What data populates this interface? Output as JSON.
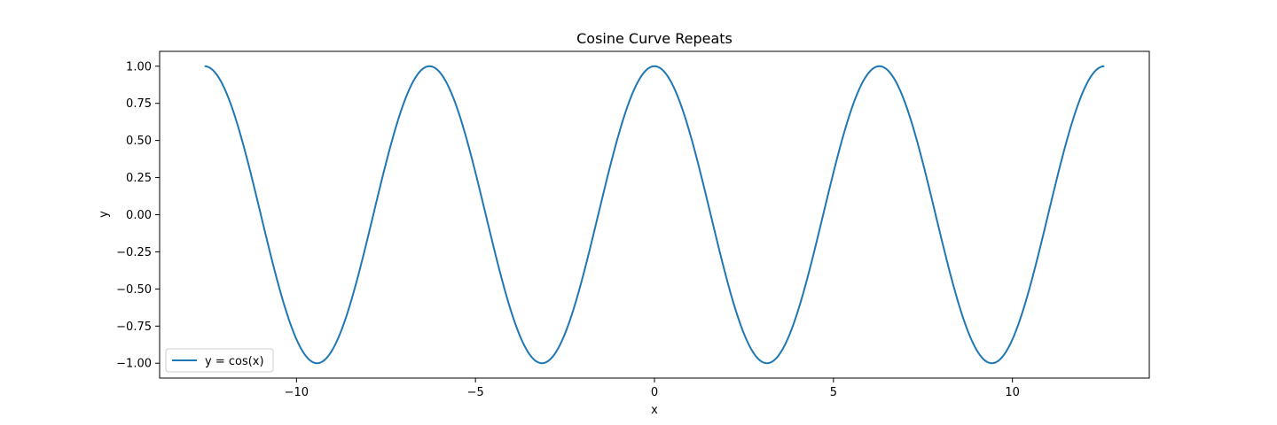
{
  "chart_data": {
    "type": "line",
    "title": "Cosine Curve Repeats",
    "xlabel": "x",
    "ylabel": "y",
    "xlim": [
      -13.823,
      13.823
    ],
    "ylim": [
      -1.1,
      1.1
    ],
    "xticks": [
      -10,
      -5,
      0,
      5,
      10
    ],
    "xtick_labels": [
      "−10",
      "−5",
      "0",
      "5",
      "10"
    ],
    "yticks": [
      -1.0,
      -0.75,
      -0.5,
      -0.25,
      0.0,
      0.25,
      0.5,
      0.75,
      1.0
    ],
    "ytick_labels": [
      "−1.00",
      "−0.75",
      "−0.50",
      "−0.25",
      "0.00",
      "0.25",
      "0.50",
      "0.75",
      "1.00"
    ],
    "grid": false,
    "legend_position": "lower-left",
    "series": [
      {
        "name": "y = cos(x)",
        "color": "#1f77b4",
        "function": "cos",
        "x_range": [
          -12.566,
          12.566
        ],
        "x": [
          -12.566,
          -11.781,
          -10.996,
          -10.21,
          -9.425,
          -8.639,
          -7.854,
          -7.069,
          -6.283,
          -5.498,
          -4.712,
          -3.927,
          -3.142,
          -2.356,
          -1.571,
          -0.785,
          0,
          0.785,
          1.571,
          2.356,
          3.142,
          3.927,
          4.712,
          5.498,
          6.283,
          7.069,
          7.854,
          8.639,
          9.425,
          10.21,
          10.996,
          11.781,
          12.566
        ],
        "y": [
          1.0,
          0.707,
          0.0,
          -0.707,
          -1.0,
          -0.707,
          0.0,
          0.707,
          1.0,
          0.707,
          0.0,
          -0.707,
          -1.0,
          -0.707,
          0.0,
          0.707,
          1.0,
          0.707,
          0.0,
          -0.707,
          -1.0,
          -0.707,
          0.0,
          0.707,
          1.0,
          0.707,
          0.0,
          -0.707,
          -1.0,
          -0.707,
          0.0,
          0.707,
          1.0
        ]
      }
    ]
  }
}
